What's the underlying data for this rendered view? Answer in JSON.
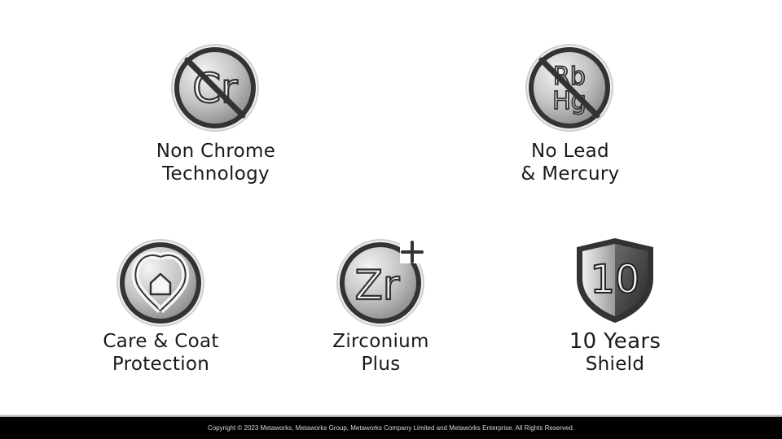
{
  "features": {
    "non_chrome": {
      "icon": "no-chrome-icon",
      "symbol": "Cr",
      "line1": "Non Chrome",
      "line2": "Technology"
    },
    "no_lead": {
      "icon": "no-lead-mercury-icon",
      "symbol_top": "Rb",
      "symbol_bottom": "Hg",
      "line1": "No Lead",
      "line2": "& Mercury"
    },
    "care_coat": {
      "icon": "house-heart-icon",
      "line1": "Care & Coat",
      "line2": "Protection"
    },
    "zirconium": {
      "icon": "zirconium-plus-icon",
      "symbol": "Zr",
      "line1": "Zirconium",
      "line2": "Plus"
    },
    "shield": {
      "icon": "shield-icon",
      "number": "10",
      "line1": "10 Years",
      "line2": "Shield"
    }
  },
  "footer": {
    "copyright": "Copyright © 2023 Metaworks, Metaworks Group, Metaworks Company Limited and Metaworks Enterprise. All Rights Reserved."
  },
  "colors": {
    "icon_ring": "#3a3a3a",
    "icon_fill_light": "#e8e8e8",
    "icon_fill_dark": "#8e8e8e",
    "footer_bg": "#000000"
  }
}
